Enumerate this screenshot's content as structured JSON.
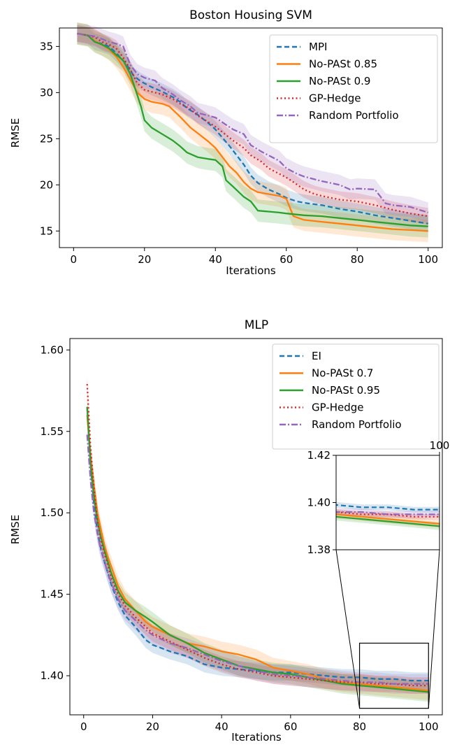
{
  "chart_data": [
    {
      "type": "line",
      "title": "Boston Housing SVM",
      "xlabel": "Iterations",
      "ylabel": "RMSE",
      "xlim": [
        -4,
        104
      ],
      "ylim": [
        13.2,
        37.0
      ],
      "xticks": [
        0,
        20,
        40,
        60,
        80,
        100
      ],
      "xtick_labels": [
        "0",
        "20",
        "40",
        "60",
        "80",
        "100"
      ],
      "yticks": [
        15,
        20,
        25,
        30,
        35
      ],
      "ytick_labels": [
        "15",
        "20",
        "25",
        "30",
        "35"
      ],
      "grid": false,
      "legend_position": "top-right",
      "series": [
        {
          "name": "MPI",
          "color": "#1f77b4",
          "dash": "dashed",
          "x": [
            1,
            4,
            6,
            8,
            10,
            12,
            15,
            17,
            19,
            22,
            25,
            28,
            30,
            32,
            35,
            38,
            40,
            42,
            44,
            46,
            48,
            50,
            52,
            55,
            58,
            60,
            63,
            66,
            70,
            75,
            80,
            85,
            90,
            95,
            100
          ],
          "y": [
            36.4,
            36.2,
            35.5,
            35.3,
            35.0,
            34.3,
            33.0,
            31.8,
            31.2,
            30.6,
            30.1,
            29.5,
            29.0,
            28.3,
            27.6,
            26.7,
            26.0,
            25.1,
            24.2,
            23.2,
            22.2,
            21.0,
            20.2,
            19.5,
            19.0,
            18.6,
            18.2,
            18.0,
            17.8,
            17.4,
            17.1,
            16.7,
            16.4,
            16.1,
            15.8
          ]
        },
        {
          "name": "No-PASt 0.85",
          "color": "#ff7f0e",
          "dash": "solid",
          "x": [
            1,
            4,
            6,
            8,
            10,
            12,
            14,
            16,
            18,
            20,
            22,
            25,
            27,
            30,
            33,
            35,
            38,
            40,
            42,
            44,
            46,
            48,
            50,
            52,
            55,
            58,
            60,
            62,
            65,
            70,
            75,
            80,
            85,
            90,
            95,
            100
          ],
          "y": [
            36.4,
            36.2,
            35.6,
            35.2,
            34.7,
            33.9,
            32.8,
            31.4,
            30.0,
            29.3,
            29.0,
            28.8,
            28.5,
            27.4,
            26.2,
            25.6,
            24.7,
            24.0,
            23.0,
            22.0,
            21.3,
            20.3,
            19.6,
            19.2,
            19.0,
            18.8,
            18.5,
            16.6,
            16.2,
            16.0,
            15.8,
            15.6,
            15.4,
            15.2,
            15.1,
            15.0
          ]
        },
        {
          "name": "No-PASt 0.9",
          "color": "#2ca02c",
          "dash": "solid",
          "x": [
            1,
            4,
            6,
            8,
            10,
            12,
            14,
            16,
            18,
            19,
            20,
            22,
            25,
            28,
            30,
            32,
            35,
            38,
            40,
            42,
            43,
            45,
            48,
            50,
            52,
            55,
            58,
            60,
            65,
            70,
            75,
            80,
            85,
            90,
            95,
            100
          ],
          "y": [
            36.4,
            36.2,
            35.5,
            35.2,
            34.8,
            34.1,
            33.5,
            32.0,
            29.7,
            28.5,
            27.0,
            26.2,
            25.5,
            24.8,
            24.2,
            23.5,
            23.0,
            22.8,
            22.7,
            22.0,
            20.5,
            19.8,
            18.7,
            18.2,
            17.2,
            17.1,
            17.0,
            16.9,
            16.7,
            16.6,
            16.4,
            16.2,
            16.0,
            15.8,
            15.6,
            15.5
          ]
        },
        {
          "name": "GP-Hedge",
          "color": "#d62728",
          "dash": "dotted",
          "x": [
            1,
            4,
            6,
            8,
            10,
            12,
            14,
            16,
            18,
            20,
            23,
            25,
            28,
            30,
            33,
            35,
            38,
            40,
            43,
            45,
            48,
            50,
            53,
            55,
            58,
            60,
            62,
            65,
            68,
            70,
            75,
            80,
            85,
            90,
            95,
            100
          ],
          "y": [
            36.4,
            36.2,
            36.0,
            35.5,
            35.2,
            34.8,
            33.8,
            32.5,
            31.0,
            30.3,
            30.0,
            29.8,
            29.3,
            28.8,
            28.2,
            27.5,
            26.8,
            26.3,
            25.4,
            24.8,
            24.0,
            23.2,
            22.5,
            21.8,
            21.2,
            20.8,
            20.3,
            19.5,
            19.0,
            18.8,
            18.4,
            18.2,
            17.8,
            17.3,
            16.9,
            16.6
          ]
        },
        {
          "name": "Random Portfolio",
          "color": "#9467bd",
          "dash": "dashdot",
          "x": [
            1,
            4,
            6,
            8,
            10,
            12,
            14,
            16,
            18,
            20,
            23,
            25,
            28,
            30,
            33,
            35,
            38,
            40,
            43,
            45,
            48,
            50,
            53,
            55,
            58,
            60,
            63,
            65,
            68,
            70,
            75,
            78,
            80,
            85,
            88,
            90,
            95,
            100
          ],
          "y": [
            36.4,
            36.2,
            36.1,
            35.8,
            35.5,
            35.3,
            35.0,
            33.0,
            32.0,
            31.6,
            31.3,
            30.5,
            29.8,
            29.2,
            28.5,
            27.8,
            27.5,
            27.3,
            26.5,
            26.0,
            25.5,
            24.3,
            23.6,
            23.2,
            22.6,
            21.8,
            21.2,
            20.9,
            20.6,
            20.4,
            20.0,
            19.5,
            19.6,
            19.5,
            18.0,
            17.8,
            17.6,
            17.0
          ]
        }
      ]
    },
    {
      "type": "line",
      "title": "MLP",
      "xlabel": "Iterations",
      "ylabel": "RMSE",
      "xlim": [
        -4,
        104
      ],
      "ylim": [
        1.376,
        1.607
      ],
      "xticks": [
        0,
        20,
        40,
        60,
        80,
        100
      ],
      "xtick_labels": [
        "0",
        "20",
        "40",
        "60",
        "80",
        "100"
      ],
      "yticks": [
        1.4,
        1.45,
        1.5,
        1.55,
        1.6
      ],
      "ytick_labels": [
        "1.40",
        "1.45",
        "1.50",
        "1.55",
        "1.60"
      ],
      "grid": false,
      "legend_position": "top-right",
      "series": [
        {
          "name": "EI",
          "color": "#1f77b4",
          "dash": "dashed",
          "x": [
            1,
            2,
            3,
            4,
            5,
            6,
            7,
            8,
            10,
            12,
            15,
            18,
            20,
            25,
            30,
            35,
            40,
            45,
            50,
            55,
            60,
            65,
            70,
            75,
            80,
            85,
            90,
            95,
            100
          ],
          "y": [
            1.565,
            1.53,
            1.505,
            1.488,
            1.478,
            1.47,
            1.463,
            1.456,
            1.445,
            1.437,
            1.43,
            1.422,
            1.419,
            1.415,
            1.412,
            1.407,
            1.405,
            1.404,
            1.403,
            1.402,
            1.402,
            1.401,
            1.4,
            1.399,
            1.399,
            1.398,
            1.398,
            1.397,
            1.397
          ]
        },
        {
          "name": "No-PASt 0.7",
          "color": "#ff7f0e",
          "dash": "solid",
          "x": [
            1,
            2,
            3,
            4,
            5,
            6,
            7,
            8,
            10,
            12,
            15,
            18,
            20,
            25,
            30,
            35,
            40,
            45,
            50,
            55,
            60,
            65,
            70,
            75,
            80,
            85,
            90,
            95,
            100
          ],
          "y": [
            1.56,
            1.535,
            1.517,
            1.5,
            1.49,
            1.48,
            1.473,
            1.467,
            1.455,
            1.447,
            1.44,
            1.433,
            1.43,
            1.425,
            1.42,
            1.418,
            1.415,
            1.413,
            1.41,
            1.405,
            1.403,
            1.401,
            1.398,
            1.396,
            1.395,
            1.394,
            1.393,
            1.392,
            1.391
          ]
        },
        {
          "name": "No-PASt 0.95",
          "color": "#2ca02c",
          "dash": "solid",
          "x": [
            1,
            2,
            3,
            4,
            5,
            6,
            7,
            8,
            10,
            12,
            15,
            18,
            20,
            25,
            30,
            35,
            40,
            45,
            50,
            55,
            60,
            65,
            70,
            75,
            80,
            85,
            90,
            95,
            100
          ],
          "y": [
            1.565,
            1.53,
            1.51,
            1.495,
            1.485,
            1.477,
            1.47,
            1.463,
            1.452,
            1.445,
            1.44,
            1.436,
            1.433,
            1.425,
            1.42,
            1.414,
            1.41,
            1.406,
            1.404,
            1.402,
            1.401,
            1.399,
            1.397,
            1.395,
            1.394,
            1.393,
            1.392,
            1.391,
            1.39
          ]
        },
        {
          "name": "GP-Hedge",
          "color": "#d62728",
          "dash": "dotted",
          "x": [
            1,
            2,
            3,
            4,
            5,
            6,
            7,
            8,
            10,
            12,
            15,
            18,
            20,
            25,
            30,
            35,
            40,
            45,
            50,
            55,
            60,
            65,
            70,
            75,
            80,
            85,
            90,
            95,
            100
          ],
          "y": [
            1.579,
            1.54,
            1.515,
            1.495,
            1.483,
            1.475,
            1.468,
            1.46,
            1.45,
            1.443,
            1.436,
            1.43,
            1.426,
            1.421,
            1.416,
            1.411,
            1.407,
            1.404,
            1.402,
            1.4,
            1.399,
            1.398,
            1.397,
            1.396,
            1.396,
            1.395,
            1.395,
            1.394,
            1.394
          ]
        },
        {
          "name": "Random Portfolio",
          "color": "#9467bd",
          "dash": "dashdot",
          "x": [
            1,
            2,
            3,
            4,
            5,
            6,
            7,
            8,
            10,
            12,
            15,
            18,
            20,
            25,
            30,
            35,
            40,
            45,
            50,
            55,
            60,
            65,
            70,
            75,
            80,
            85,
            90,
            95,
            100
          ],
          "y": [
            1.548,
            1.52,
            1.5,
            1.487,
            1.477,
            1.47,
            1.463,
            1.457,
            1.447,
            1.44,
            1.434,
            1.428,
            1.425,
            1.42,
            1.417,
            1.413,
            1.409,
            1.406,
            1.403,
            1.401,
            1.4,
            1.399,
            1.398,
            1.397,
            1.396,
            1.396,
            1.395,
            1.395,
            1.395
          ]
        }
      ],
      "inset": {
        "xlim": [
          80,
          100
        ],
        "ylim": [
          1.38,
          1.42
        ],
        "yticks": [
          1.38,
          1.4,
          1.42
        ],
        "ytick_labels": [
          "1.38",
          "1.40",
          "1.42"
        ],
        "xtick_label": "100"
      }
    }
  ]
}
